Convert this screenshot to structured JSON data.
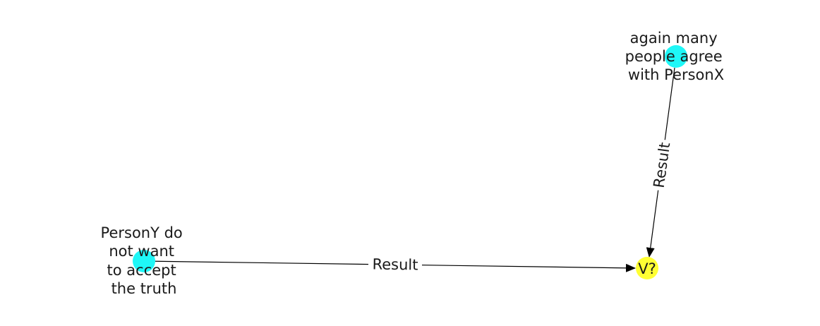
{
  "colors": {
    "cause_node": "#1ff7f7",
    "target_node": "#ffff33",
    "edge": "#000000",
    "text": "#1a1a1a",
    "background": "#ffffff"
  },
  "nodes": {
    "top": {
      "label_lines": [
        "again many",
        "people agree",
        "with PersonX"
      ]
    },
    "left": {
      "label_lines": [
        "PersonY do",
        "not want",
        "to accept",
        "the truth"
      ]
    },
    "target": {
      "label": "V?"
    }
  },
  "edges": {
    "top_to_target": {
      "label": "Result"
    },
    "left_to_target": {
      "label": "Result"
    }
  }
}
